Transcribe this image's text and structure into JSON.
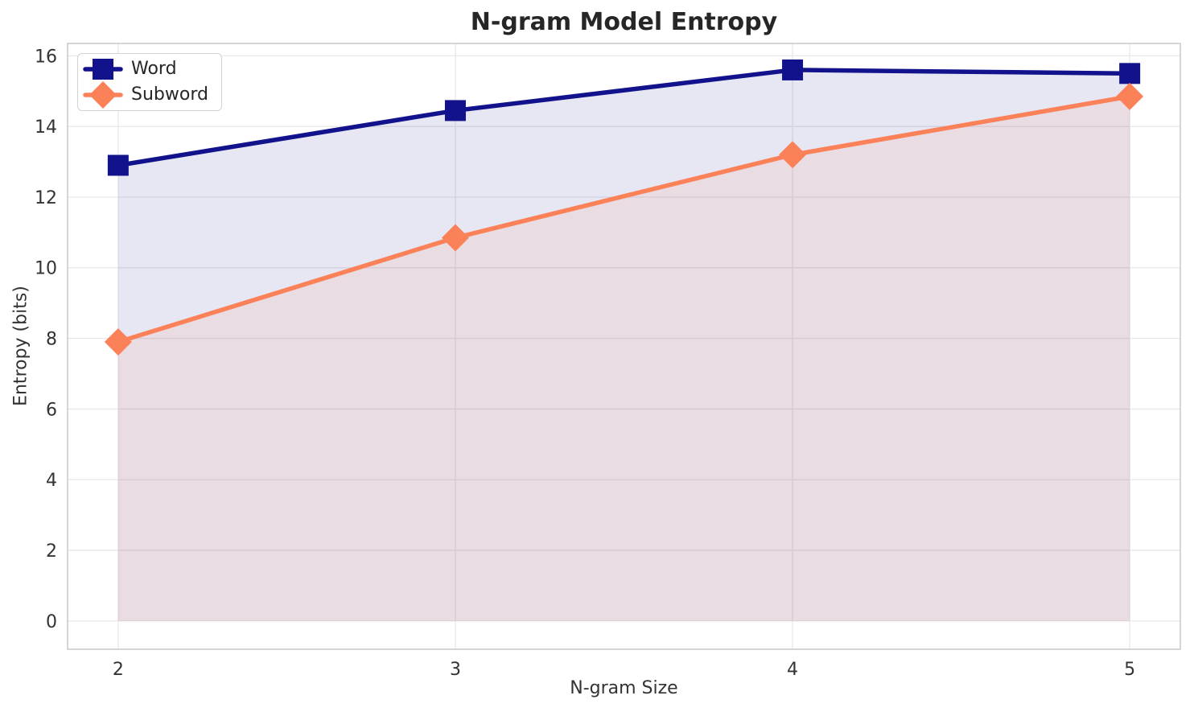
{
  "chart_data": {
    "type": "line",
    "title": "N-gram Model Entropy",
    "xlabel": "N-gram Size",
    "ylabel": "Entropy (bits)",
    "x": [
      2,
      3,
      4,
      5
    ],
    "series": [
      {
        "name": "Word",
        "values": [
          12.9,
          14.45,
          15.6,
          15.5
        ],
        "color": "#12128C",
        "marker": "square",
        "fill_opacity": 0.1
      },
      {
        "name": "Subword",
        "values": [
          7.9,
          10.85,
          13.2,
          14.85
        ],
        "color": "#FB8159",
        "marker": "diamond",
        "fill_opacity": 0.1
      }
    ],
    "xticks": [
      2,
      3,
      4,
      5
    ],
    "yticks": [
      0,
      2,
      4,
      6,
      8,
      10,
      12,
      14,
      16
    ],
    "xlim": [
      1.85,
      5.15
    ],
    "ylim": [
      -0.8,
      16.35
    ],
    "fill_baseline": 0,
    "grid": true,
    "legend_position": "upper left"
  },
  "style_colors": {
    "grid": "#E8E8E8",
    "spine": "#CBCBCB",
    "tick_label": "#333333"
  }
}
